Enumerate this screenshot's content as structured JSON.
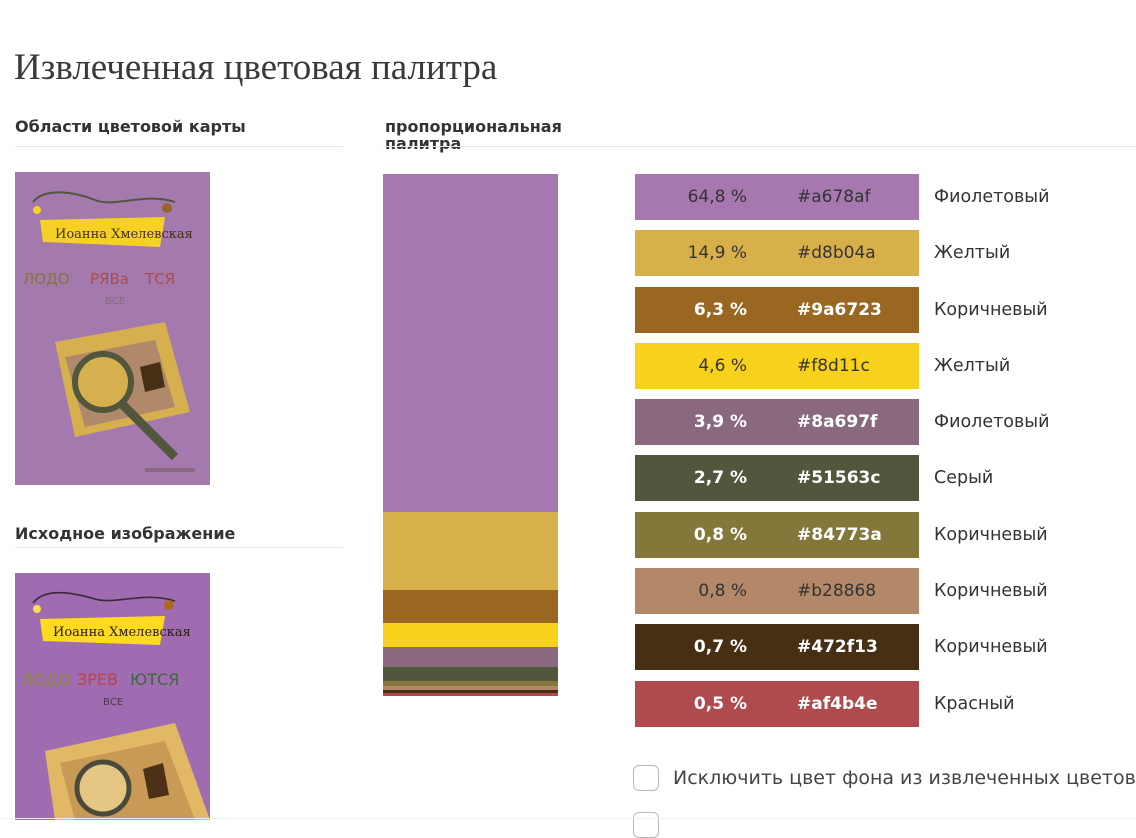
{
  "page": {
    "title": "Извлеченная цветовая палитра"
  },
  "sections": {
    "color_map": "Области цветовой карты",
    "proportional": "пропорциональная палитра",
    "source": "Исходное изображение"
  },
  "palette": [
    {
      "percent": "64,8 %",
      "hex": "#a678af",
      "name": "Фиолетовый",
      "share": 64.8,
      "text": "light"
    },
    {
      "percent": "14,9 %",
      "hex": "#d8b04a",
      "name": "Желтый",
      "share": 14.9,
      "text": "light"
    },
    {
      "percent": "6,3 %",
      "hex": "#9a6723",
      "name": "Коричневый",
      "share": 6.3,
      "text": "dark"
    },
    {
      "percent": "4,6 %",
      "hex": "#f8d11c",
      "name": "Желтый",
      "share": 4.6,
      "text": "light"
    },
    {
      "percent": "3,9 %",
      "hex": "#8a697f",
      "name": "Фиолетовый",
      "share": 3.9,
      "text": "dark"
    },
    {
      "percent": "2,7 %",
      "hex": "#51563c",
      "name": "Серый",
      "share": 2.7,
      "text": "dark"
    },
    {
      "percent": "0,8 %",
      "hex": "#84773a",
      "name": "Коричневый",
      "share": 0.8,
      "text": "dark"
    },
    {
      "percent": "0,8 %",
      "hex": "#b28868",
      "name": "Коричневый",
      "share": 0.8,
      "text": "light"
    },
    {
      "percent": "0,7 %",
      "hex": "#472f13",
      "name": "Коричневый",
      "share": 0.7,
      "text": "dark"
    },
    {
      "percent": "0,5 %",
      "hex": "#af4b4e",
      "name": "Красный",
      "share": 0.5,
      "text": "dark"
    }
  ],
  "options": {
    "exclude_background": "Исключить цвет фона из извлеченных цветов"
  }
}
